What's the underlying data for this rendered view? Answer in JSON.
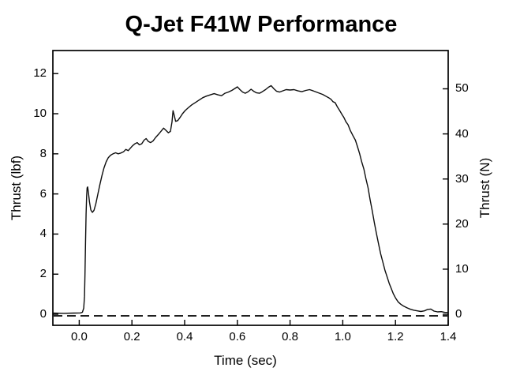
{
  "chart": {
    "title": "Q-Jet F41W Performance",
    "xlabel": "Time (sec)",
    "ylabel_left": "Thrust (lbf)",
    "ylabel_right": "Thrust (N)"
  },
  "chart_data": {
    "type": "line",
    "title": "Q-Jet F41W Performance",
    "xlabel": "Time (sec)",
    "ylabel": "Thrust (lbf)",
    "ylabel_right": "Thrust (N)",
    "grid": false,
    "legend": "none",
    "xlim": [
      -0.1,
      1.4
    ],
    "ylim_lbf": [
      -0.55,
      13.15
    ],
    "ylim_n": [
      -2.4,
      58.5
    ],
    "lbf_to_n": 4.448,
    "x_ticks": [
      0.0,
      0.2,
      0.4,
      0.6,
      0.8,
      1.0,
      1.2,
      1.4
    ],
    "x_tick_labels": [
      "0.0",
      "0.2",
      "0.4",
      "0.6",
      "0.8",
      "1.0",
      "1.2",
      "1.4"
    ],
    "y_ticks_left": [
      0,
      2,
      4,
      6,
      8,
      10,
      12
    ],
    "y_tick_labels_left": [
      "0",
      "2",
      "4",
      "6",
      "8",
      "10",
      "12"
    ],
    "y_ticks_right": [
      0,
      10,
      20,
      30,
      40,
      50
    ],
    "y_tick_labels_right": [
      "0",
      "10",
      "20",
      "30",
      "40",
      "50"
    ],
    "zero_line": {
      "value": 0,
      "style": "dashed",
      "color": "#000000"
    },
    "series": [
      {
        "name": "thrust-curve",
        "color": "#0d0d0d",
        "points_t_lbf": [
          [
            -0.1,
            0.06
          ],
          [
            -0.06,
            0.05
          ],
          [
            -0.02,
            0.06
          ],
          [
            0.005,
            0.07
          ],
          [
            0.012,
            0.1
          ],
          [
            0.017,
            0.3
          ],
          [
            0.02,
            0.9
          ],
          [
            0.022,
            2.0
          ],
          [
            0.024,
            3.6
          ],
          [
            0.026,
            5.0
          ],
          [
            0.028,
            5.9
          ],
          [
            0.03,
            6.3
          ],
          [
            0.032,
            6.35
          ],
          [
            0.035,
            6.05
          ],
          [
            0.039,
            5.6
          ],
          [
            0.044,
            5.2
          ],
          [
            0.05,
            5.08
          ],
          [
            0.056,
            5.18
          ],
          [
            0.063,
            5.5
          ],
          [
            0.07,
            5.95
          ],
          [
            0.078,
            6.45
          ],
          [
            0.086,
            6.9
          ],
          [
            0.094,
            7.3
          ],
          [
            0.102,
            7.6
          ],
          [
            0.11,
            7.8
          ],
          [
            0.119,
            7.93
          ],
          [
            0.128,
            8.0
          ],
          [
            0.138,
            8.05
          ],
          [
            0.148,
            8.0
          ],
          [
            0.158,
            8.04
          ],
          [
            0.168,
            8.1
          ],
          [
            0.177,
            8.22
          ],
          [
            0.186,
            8.16
          ],
          [
            0.194,
            8.28
          ],
          [
            0.202,
            8.4
          ],
          [
            0.211,
            8.5
          ],
          [
            0.22,
            8.56
          ],
          [
            0.228,
            8.45
          ],
          [
            0.237,
            8.5
          ],
          [
            0.246,
            8.68
          ],
          [
            0.254,
            8.76
          ],
          [
            0.262,
            8.62
          ],
          [
            0.271,
            8.56
          ],
          [
            0.28,
            8.64
          ],
          [
            0.29,
            8.82
          ],
          [
            0.3,
            8.96
          ],
          [
            0.31,
            9.12
          ],
          [
            0.32,
            9.28
          ],
          [
            0.33,
            9.16
          ],
          [
            0.338,
            9.05
          ],
          [
            0.346,
            9.12
          ],
          [
            0.352,
            9.6
          ],
          [
            0.356,
            10.15
          ],
          [
            0.36,
            9.95
          ],
          [
            0.366,
            9.62
          ],
          [
            0.374,
            9.66
          ],
          [
            0.383,
            9.82
          ],
          [
            0.392,
            10.0
          ],
          [
            0.402,
            10.16
          ],
          [
            0.414,
            10.3
          ],
          [
            0.427,
            10.44
          ],
          [
            0.441,
            10.56
          ],
          [
            0.455,
            10.68
          ],
          [
            0.469,
            10.8
          ],
          [
            0.483,
            10.88
          ],
          [
            0.498,
            10.94
          ],
          [
            0.512,
            11.0
          ],
          [
            0.526,
            10.94
          ],
          [
            0.54,
            10.9
          ],
          [
            0.553,
            11.02
          ],
          [
            0.566,
            11.08
          ],
          [
            0.579,
            11.16
          ],
          [
            0.591,
            11.26
          ],
          [
            0.6,
            11.34
          ],
          [
            0.61,
            11.2
          ],
          [
            0.62,
            11.08
          ],
          [
            0.63,
            11.02
          ],
          [
            0.641,
            11.1
          ],
          [
            0.652,
            11.22
          ],
          [
            0.662,
            11.12
          ],
          [
            0.673,
            11.04
          ],
          [
            0.684,
            11.02
          ],
          [
            0.695,
            11.1
          ],
          [
            0.707,
            11.2
          ],
          [
            0.718,
            11.32
          ],
          [
            0.728,
            11.4
          ],
          [
            0.739,
            11.24
          ],
          [
            0.749,
            11.12
          ],
          [
            0.76,
            11.08
          ],
          [
            0.772,
            11.14
          ],
          [
            0.785,
            11.2
          ],
          [
            0.8,
            11.18
          ],
          [
            0.815,
            11.2
          ],
          [
            0.83,
            11.14
          ],
          [
            0.845,
            11.1
          ],
          [
            0.86,
            11.16
          ],
          [
            0.874,
            11.2
          ],
          [
            0.888,
            11.14
          ],
          [
            0.9,
            11.08
          ],
          [
            0.912,
            11.02
          ],
          [
            0.924,
            10.96
          ],
          [
            0.935,
            10.88
          ],
          [
            0.946,
            10.8
          ],
          [
            0.955,
            10.72
          ],
          [
            0.963,
            10.6
          ],
          [
            0.971,
            10.55
          ],
          [
            0.979,
            10.35
          ],
          [
            0.987,
            10.18
          ],
          [
            0.996,
            9.98
          ],
          [
            1.004,
            9.82
          ],
          [
            1.012,
            9.6
          ],
          [
            1.02,
            9.45
          ],
          [
            1.029,
            9.15
          ],
          [
            1.038,
            8.92
          ],
          [
            1.048,
            8.68
          ],
          [
            1.056,
            8.35
          ],
          [
            1.064,
            8.0
          ],
          [
            1.072,
            7.6
          ],
          [
            1.08,
            7.25
          ],
          [
            1.088,
            6.75
          ],
          [
            1.096,
            6.3
          ],
          [
            1.104,
            5.7
          ],
          [
            1.112,
            5.15
          ],
          [
            1.12,
            4.55
          ],
          [
            1.128,
            4.0
          ],
          [
            1.136,
            3.5
          ],
          [
            1.144,
            3.0
          ],
          [
            1.152,
            2.6
          ],
          [
            1.16,
            2.2
          ],
          [
            1.168,
            1.88
          ],
          [
            1.176,
            1.55
          ],
          [
            1.184,
            1.28
          ],
          [
            1.192,
            1.02
          ],
          [
            1.2,
            0.82
          ],
          [
            1.21,
            0.62
          ],
          [
            1.22,
            0.5
          ],
          [
            1.232,
            0.4
          ],
          [
            1.244,
            0.32
          ],
          [
            1.257,
            0.25
          ],
          [
            1.27,
            0.2
          ],
          [
            1.283,
            0.17
          ],
          [
            1.296,
            0.14
          ],
          [
            1.31,
            0.17
          ],
          [
            1.322,
            0.24
          ],
          [
            1.334,
            0.26
          ],
          [
            1.346,
            0.16
          ],
          [
            1.36,
            0.12
          ],
          [
            1.374,
            0.13
          ],
          [
            1.388,
            0.09
          ],
          [
            1.4,
            0.09
          ]
        ]
      }
    ]
  }
}
